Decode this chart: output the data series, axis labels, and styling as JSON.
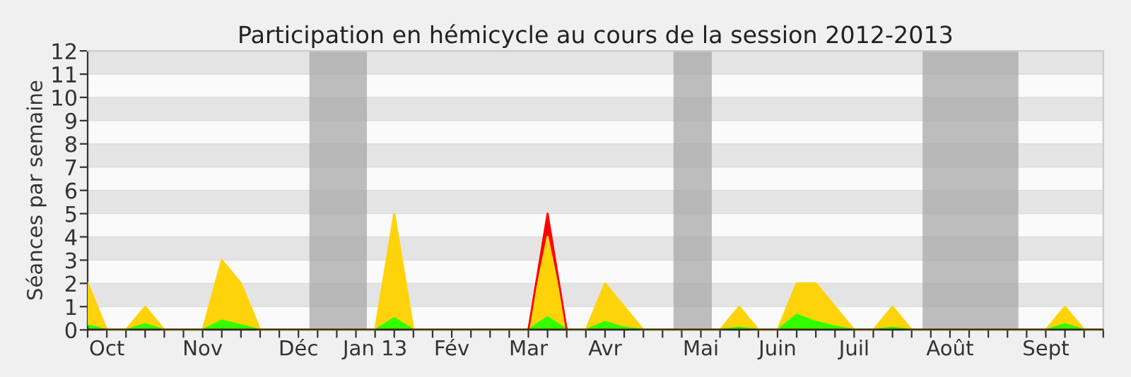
{
  "chart_data": {
    "type": "area",
    "title": "Participation en hémicycle au cours de la session 2012-2013",
    "ylabel": "Séances par semaine",
    "x": [
      "2012-09-24",
      "2012-10-01",
      "2012-10-08",
      "2012-10-15",
      "2012-10-22",
      "2012-10-29",
      "2012-11-05",
      "2012-11-12",
      "2012-11-19",
      "2012-11-26",
      "2012-12-03",
      "2012-12-10",
      "2012-12-17",
      "2012-12-24",
      "2012-12-31",
      "2013-01-07",
      "2013-01-14",
      "2013-01-21",
      "2013-01-28",
      "2013-02-04",
      "2013-02-11",
      "2013-02-18",
      "2013-02-25",
      "2013-03-04",
      "2013-03-11",
      "2013-03-18",
      "2013-03-25",
      "2013-04-01",
      "2013-04-08",
      "2013-04-15",
      "2013-04-22",
      "2013-04-29",
      "2013-05-06",
      "2013-05-13",
      "2013-05-20",
      "2013-05-27",
      "2013-06-03",
      "2013-06-10",
      "2013-06-17",
      "2013-06-24",
      "2013-07-01",
      "2013-07-08",
      "2013-07-15",
      "2013-07-22",
      "2013-07-29",
      "2013-08-05",
      "2013-08-12",
      "2013-08-19",
      "2013-08-26",
      "2013-09-02",
      "2013-09-09",
      "2013-09-16",
      "2013-09-23",
      "2013-09-30"
    ],
    "series": [
      {
        "color": "#33ff00",
        "values": [
          0.2,
          0,
          0,
          0.25,
          0,
          0,
          0,
          0.4,
          0.2,
          0,
          0,
          0,
          0,
          0,
          0,
          0,
          0.5,
          0,
          0,
          0,
          0,
          0,
          0,
          0,
          0.55,
          0,
          0,
          0.35,
          0.1,
          0,
          0,
          0,
          0,
          0,
          0.1,
          0,
          0,
          0.65,
          0.35,
          0.15,
          0,
          0,
          0.1,
          0,
          0,
          0,
          0,
          0,
          0,
          0,
          0,
          0.25,
          0,
          0
        ]
      },
      {
        "color": "#ffd30a",
        "values": [
          1.8,
          0,
          0,
          0.75,
          0,
          0,
          0,
          2.6,
          1.8,
          0,
          0,
          0,
          0,
          0,
          0,
          0,
          4.5,
          0,
          0,
          0,
          0,
          0,
          0,
          0,
          3.45,
          0,
          0,
          1.65,
          0.9,
          0,
          0,
          0,
          0,
          0,
          0.9,
          0,
          0,
          1.35,
          1.65,
          0.85,
          0,
          0,
          0.9,
          0,
          0,
          0,
          0,
          0,
          0,
          0,
          0,
          0.75,
          0,
          0
        ]
      },
      {
        "color": "#ff0000",
        "values": [
          null,
          null,
          null,
          null,
          null,
          null,
          null,
          null,
          null,
          null,
          null,
          null,
          null,
          null,
          null,
          null,
          null,
          null,
          null,
          null,
          null,
          null,
          null,
          0,
          1,
          0,
          null,
          null,
          null,
          null,
          null,
          null,
          null,
          null,
          null,
          null,
          null,
          null,
          null,
          null,
          null,
          null,
          null,
          null,
          null,
          null,
          null,
          null,
          null,
          null,
          null,
          null,
          null,
          null
        ]
      }
    ],
    "stacked": true,
    "xlim": [
      "2012-09-24",
      "2013-09-30"
    ],
    "xticks": [
      {
        "value": "2012-09-24",
        "label": null
      },
      {
        "value": "2012-10-01",
        "label": "Oct"
      },
      {
        "value": "2012-10-08",
        "label": null
      },
      {
        "value": "2012-10-15",
        "label": null
      },
      {
        "value": "2012-10-22",
        "label": null
      },
      {
        "value": "2012-10-29",
        "label": null
      },
      {
        "value": "2012-11-05",
        "label": "Nov"
      },
      {
        "value": "2012-11-12",
        "label": null
      },
      {
        "value": "2012-11-19",
        "label": null
      },
      {
        "value": "2012-11-26",
        "label": null
      },
      {
        "value": "2012-12-03",
        "label": null
      },
      {
        "value": "2012-12-10",
        "label": "Déc"
      },
      {
        "value": "2012-12-17",
        "label": null
      },
      {
        "value": "2012-12-24",
        "label": null
      },
      {
        "value": "2012-12-31",
        "label": null
      },
      {
        "value": "2013-01-07",
        "label": "Jan 13"
      },
      {
        "value": "2013-01-14",
        "label": null
      },
      {
        "value": "2013-01-21",
        "label": null
      },
      {
        "value": "2013-01-28",
        "label": null
      },
      {
        "value": "2013-02-04",
        "label": "Fév"
      },
      {
        "value": "2013-02-11",
        "label": null
      },
      {
        "value": "2013-02-18",
        "label": null
      },
      {
        "value": "2013-02-25",
        "label": null
      },
      {
        "value": "2013-03-04",
        "label": "Mar"
      },
      {
        "value": "2013-03-11",
        "label": null
      },
      {
        "value": "2013-03-18",
        "label": null
      },
      {
        "value": "2013-03-25",
        "label": null
      },
      {
        "value": "2013-04-01",
        "label": "Avr"
      },
      {
        "value": "2013-04-08",
        "label": null
      },
      {
        "value": "2013-04-15",
        "label": null
      },
      {
        "value": "2013-04-22",
        "label": null
      },
      {
        "value": "2013-04-29",
        "label": null
      },
      {
        "value": "2013-05-06",
        "label": "Mai"
      },
      {
        "value": "2013-05-13",
        "label": null
      },
      {
        "value": "2013-05-20",
        "label": null
      },
      {
        "value": "2013-05-27",
        "label": null
      },
      {
        "value": "2013-06-03",
        "label": "Juin"
      },
      {
        "value": "2013-06-10",
        "label": null
      },
      {
        "value": "2013-06-17",
        "label": null
      },
      {
        "value": "2013-06-24",
        "label": null
      },
      {
        "value": "2013-07-01",
        "label": "Juil"
      },
      {
        "value": "2013-07-08",
        "label": null
      },
      {
        "value": "2013-07-15",
        "label": null
      },
      {
        "value": "2013-07-22",
        "label": null
      },
      {
        "value": "2013-07-29",
        "label": null
      },
      {
        "value": "2013-08-05",
        "label": "Août"
      },
      {
        "value": "2013-08-12",
        "label": null
      },
      {
        "value": "2013-08-19",
        "label": null
      },
      {
        "value": "2013-08-26",
        "label": null
      },
      {
        "value": "2013-09-02",
        "label": null
      },
      {
        "value": "2013-09-09",
        "label": "Sept"
      },
      {
        "value": "2013-09-16",
        "label": null
      },
      {
        "value": "2013-09-23",
        "label": null
      },
      {
        "value": "2013-09-30",
        "label": null
      }
    ],
    "ylim": [
      0,
      12
    ],
    "yticks": [
      0,
      1,
      2,
      3,
      4,
      5,
      6,
      7,
      8,
      9,
      10,
      11,
      12
    ],
    "grid": "y",
    "bands": [
      {
        "axis": "x",
        "from": "2012-12-14",
        "to": "2013-01-04",
        "color": "#a8a8a8"
      },
      {
        "axis": "x",
        "from": "2013-04-26",
        "to": "2013-05-10",
        "color": "#a8a8a8"
      },
      {
        "axis": "x",
        "from": "2013-07-26",
        "to": "2013-08-30",
        "color": "#a8a8a8"
      }
    ]
  }
}
